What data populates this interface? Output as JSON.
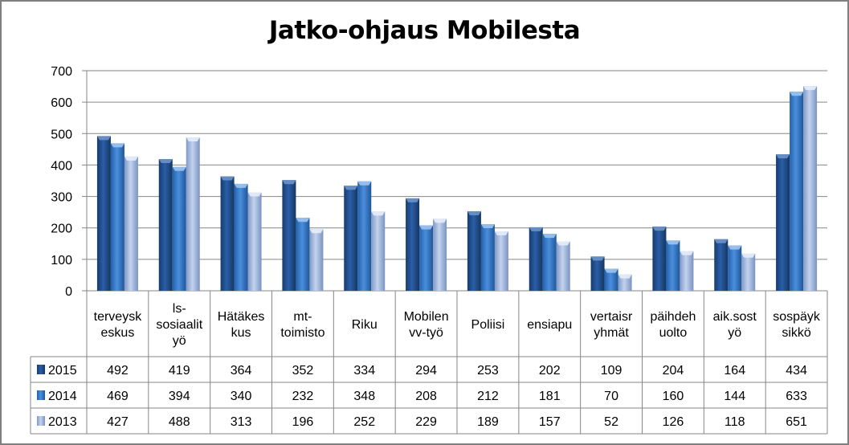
{
  "chart_data": {
    "type": "bar",
    "title": "Jatko-ohjaus Mobilesta",
    "categories": [
      [
        "terveysk",
        "eskus"
      ],
      [
        "ls-",
        "sosiaalit",
        "yö"
      ],
      [
        "Hätäkes",
        "kus"
      ],
      [
        "mt-",
        "toimisto"
      ],
      [
        "Riku"
      ],
      [
        "Mobilen",
        "vv-työ"
      ],
      [
        "Poliisi"
      ],
      [
        "ensiapu"
      ],
      [
        "vertaisr",
        "yhmät"
      ],
      [
        "päihdeh",
        "uolto"
      ],
      [
        "aik.sost",
        "yö"
      ],
      [
        "sospäyk",
        "sikkö"
      ]
    ],
    "series": [
      {
        "name": "2015",
        "values": [
          492,
          419,
          364,
          352,
          334,
          294,
          253,
          202,
          109,
          204,
          164,
          434
        ]
      },
      {
        "name": "2014",
        "values": [
          469,
          394,
          340,
          232,
          348,
          208,
          212,
          181,
          70,
          160,
          144,
          633
        ]
      },
      {
        "name": "2013",
        "values": [
          427,
          488,
          313,
          196,
          252,
          229,
          189,
          157,
          52,
          126,
          118,
          651
        ]
      }
    ],
    "ylim": [
      0,
      700
    ],
    "yticks": [
      0,
      100,
      200,
      300,
      400,
      500,
      600,
      700
    ],
    "grid": true,
    "legend": "data-table-left",
    "colors": {
      "2015": "#1f4e8c",
      "2014": "#2e75c6",
      "2013": "#9bb3dd"
    }
  }
}
